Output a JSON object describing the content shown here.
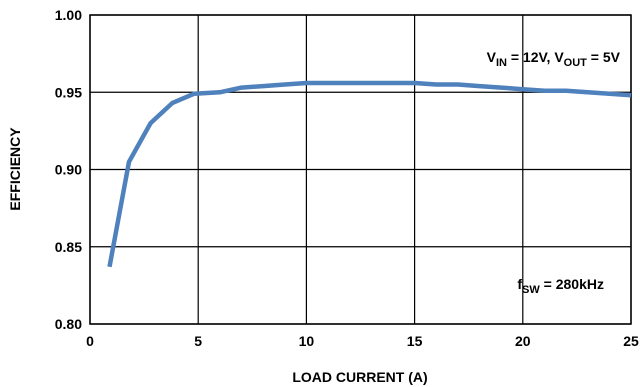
{
  "chart_data": {
    "type": "line",
    "title": "",
    "xlabel": "LOAD CURRENT (A)",
    "ylabel": "EFFICIENCY",
    "xlim": [
      0,
      25
    ],
    "ylim": [
      0.8,
      1.0
    ],
    "xticks": [
      "0",
      "5",
      "10",
      "15",
      "20",
      "25"
    ],
    "yticks": [
      "0.80",
      "0.85",
      "0.90",
      "0.95",
      "1.00"
    ],
    "grid": true,
    "series": [
      {
        "color": "#4f81bd",
        "x": [
          0.9,
          1.8,
          2.8,
          3.8,
          4.8,
          6,
          7,
          8,
          9,
          10,
          11,
          12,
          13,
          14,
          15,
          16,
          17,
          18,
          19,
          20,
          21,
          22,
          23,
          24,
          25
        ],
        "y": [
          0.837,
          0.905,
          0.93,
          0.943,
          0.949,
          0.95,
          0.953,
          0.954,
          0.955,
          0.956,
          0.956,
          0.956,
          0.956,
          0.956,
          0.956,
          0.955,
          0.955,
          0.954,
          0.953,
          0.952,
          0.951,
          0.951,
          0.95,
          0.949,
          0.948
        ]
      }
    ],
    "annotations": {
      "vin_label": "V",
      "vin_sub": "IN",
      "vin_rest": " = 12V, V",
      "vout_sub": "OUT",
      "vout_rest": " = 5V",
      "fsw_label": "f",
      "fsw_sub": "SW",
      "fsw_rest": " = 280kHz"
    }
  }
}
